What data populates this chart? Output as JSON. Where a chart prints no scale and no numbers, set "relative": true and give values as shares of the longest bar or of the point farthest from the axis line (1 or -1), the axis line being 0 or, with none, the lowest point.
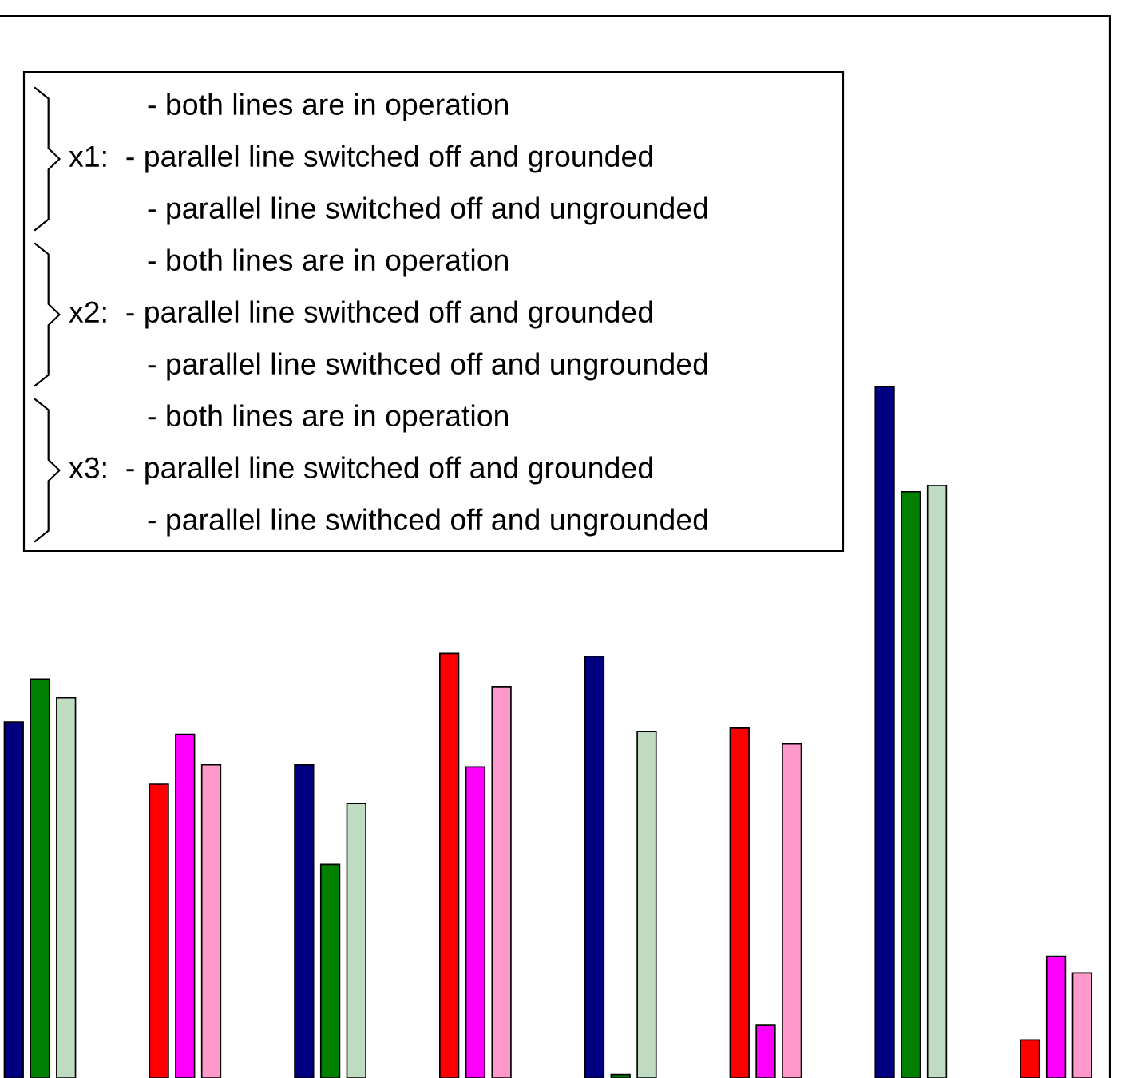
{
  "chart_data": {
    "type": "bar",
    "relative": true,
    "categories": [
      null,
      null,
      null,
      null,
      null,
      null,
      null,
      null
    ],
    "series": [
      {
        "colors": [
          "#000080",
          "#ff0000",
          "#000080",
          "#ff0000",
          "#000080",
          "#ff0000",
          "#000080",
          "#ff0000"
        ],
        "values": [
          0.515,
          0.425,
          0.453,
          0.614,
          0.61,
          0.506,
          1,
          0.055
        ]
      },
      {
        "colors": [
          "#008000",
          "#ff00ff",
          "#008000",
          "#ff00ff",
          "#008000",
          "#ff00ff",
          "#008000",
          "#ff00ff"
        ],
        "values": [
          0.577,
          0.497,
          0.309,
          0.45,
          0.005,
          0.076,
          0.848,
          0.176
        ]
      },
      {
        "colors": [
          "#c0dcc0",
          "#ff99cc",
          "#c0dcc0",
          "#ff99cc",
          "#c0dcc0",
          "#ff99cc",
          "#c0dcc0",
          "#ff99cc"
        ],
        "values": [
          0.55,
          0.453,
          0.397,
          0.566,
          0.501,
          0.483,
          0.857,
          0.152
        ]
      }
    ],
    "annotations": [
      "- both lines are in operation",
      "x1:  - parallel line switched off and grounded",
      "- parallel line switched off and ungrounded",
      "- both lines are in operation",
      "x2:  - parallel line swithced off and grounded",
      "- parallel line swithced off and ungrounded",
      "- both lines are in operation",
      "x3:  - parallel line switched off and grounded",
      "- parallel line swithced off and ungrounded"
    ],
    "grid": false,
    "legend": false
  }
}
